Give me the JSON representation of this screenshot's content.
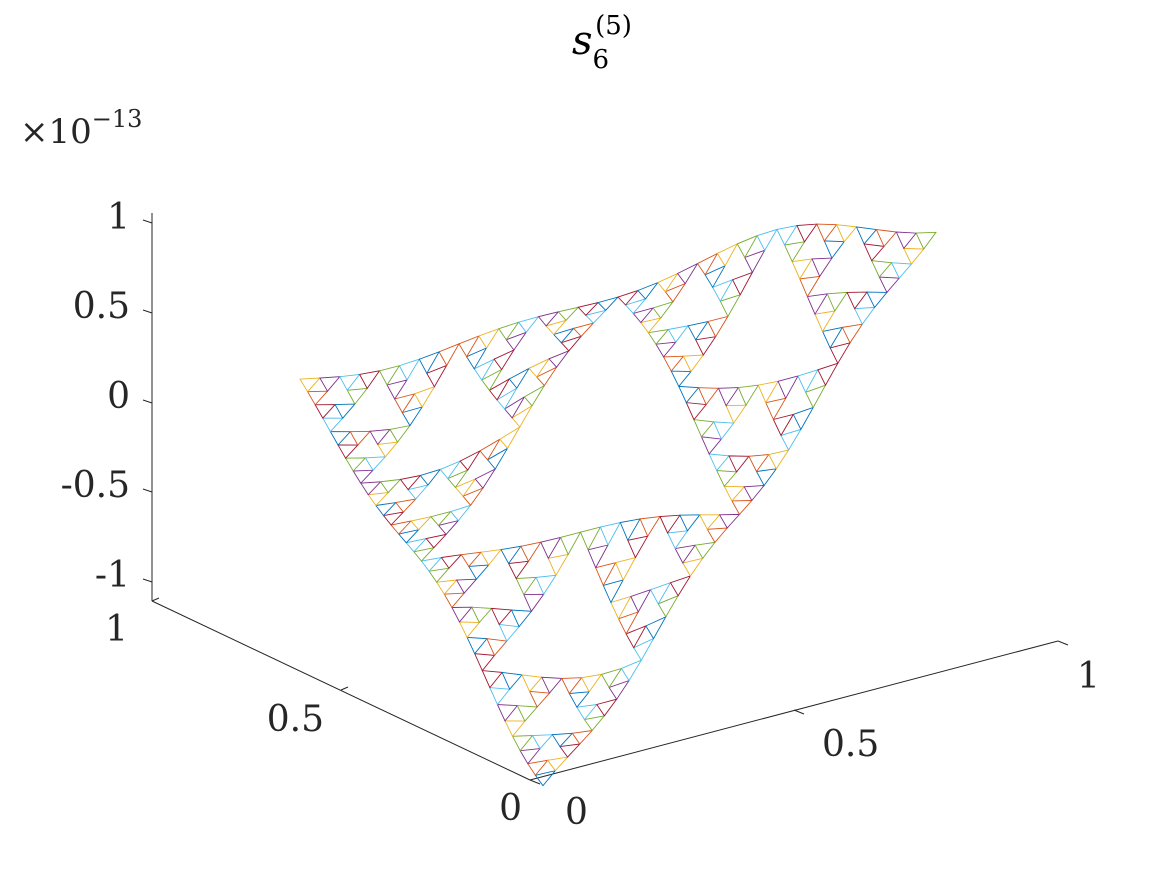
{
  "chart_data": {
    "type": "surface-3d",
    "title": {
      "base": "s",
      "subscript": "6",
      "superscript": "(5)"
    },
    "z_exponent": {
      "prefix": "×10",
      "power": "−13"
    },
    "x_axis": {
      "ticks": [
        "0",
        "0.5",
        "1"
      ],
      "range": [
        0,
        1
      ]
    },
    "y_axis": {
      "ticks": [
        "0",
        "0.5",
        "1"
      ],
      "range": [
        0,
        1
      ]
    },
    "z_axis": {
      "ticks": [
        "-1",
        "-0.5",
        "0",
        "0.5",
        "1"
      ],
      "range": [
        -1,
        1
      ]
    },
    "grid": false,
    "legend": "none",
    "sierpinski_level": 5,
    "colors": [
      "#0072BD",
      "#D95319",
      "#EDB120",
      "#7E2F8E",
      "#77AC30",
      "#4DBEEE",
      "#A2142F"
    ]
  }
}
